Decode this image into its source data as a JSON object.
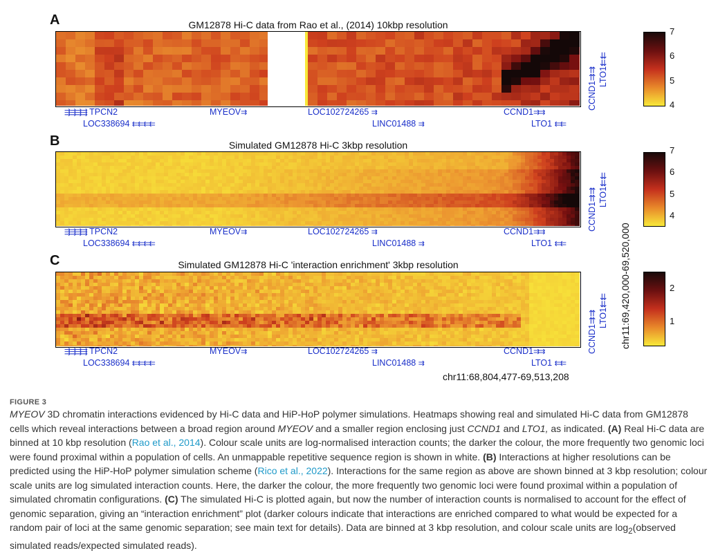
{
  "panels": [
    {
      "letter": "A",
      "title": "GM12878 Hi-C data from Rao et al., (2014) 10kbp resolution",
      "colorbar_ticks": [
        "7",
        "6",
        "5",
        "4"
      ]
    },
    {
      "letter": "B",
      "title": "Simulated GM12878 Hi-C  3kbp resolution",
      "colorbar_ticks": [
        "7",
        "6",
        "5",
        "4"
      ]
    },
    {
      "letter": "C",
      "title": "Simulated GM12878 Hi-C 'interaction enrichment' 3kbp resolution",
      "colorbar_ticks": [
        "2",
        "1"
      ]
    }
  ],
  "genes": {
    "tpcn2": "TPCN2",
    "loc338694": "LOC338694",
    "myeov": "MYEOV",
    "loc102724265": "LOC102724265",
    "linc01488": "LINC01488",
    "ccnd1": "CCND1",
    "lto1": "LTO1",
    "tpcn2_marks": "⇶⇶⇶⇶",
    "loc338694_marks": "⇇⇇⇇⇇",
    "myeov_marks": "⇉",
    "loc_marks": "⇉",
    "linc_marks": "⇉",
    "ccnd1_marks": "⇉⇉",
    "lto1_marks": "⇇⇇"
  },
  "coords": {
    "vertical": "chr11:69,420,000-69,520,000",
    "horizontal": "chr11:68,804,477-69,513,208"
  },
  "figure": {
    "label": "FIGURE 3",
    "caption_parts": {
      "p1_italic": "MYEOV",
      "p1": " 3D chromatin interactions evidenced by Hi-C data and HiP-HoP polymer simulations. Heatmaps showing real and simulated Hi-C data from GM12878 cells which reveal interactions between a broad region around ",
      "p2_italic": "MYEOV",
      "p2": " and a smaller region enclosing just ",
      "p3_italic": "CCND1",
      "p3": " and ",
      "p4_italic": "LTO1,",
      "p4": " as indicated. ",
      "a_label": "(A)",
      "a_text": " Real Hi-C data are binned at 10 kbp resolution (",
      "a_link": "Rao et al., 2014",
      "a_text2": "). Colour scale units are log-normalised interaction counts; the darker the colour, the more frequently two genomic loci were found proximal within a population of cells. An unmappable repetitive sequence region is shown in white. ",
      "b_label": "(B)",
      "b_text": " Interactions at higher resolutions can be predicted using the HiP-HoP polymer simulation scheme (",
      "b_link": "Rico et al., 2022",
      "b_text2": "). Interactions for the same region as above are shown binned at 3 kbp resolution; colour scale units are log simulated interaction counts. Here, the darker the colour, the more frequently two genomic loci were found proximal within a population of simulated chromatin configurations. ",
      "c_label": "(C)",
      "c_text": " The simulated Hi-C is plotted again, but now the number of interaction counts is normalised to account for the effect of genomic separation, giving an “interaction enrichment” plot (darker colours indicate that interactions are enriched compared to what would be expected for a random pair of loci at the same genomic separation; see main text for details). Data are binned at 3 kbp resolution, and colour scale units are log",
      "c_sub": "2",
      "c_text2": "(observed simulated reads/expected simulated reads)."
    }
  }
}
